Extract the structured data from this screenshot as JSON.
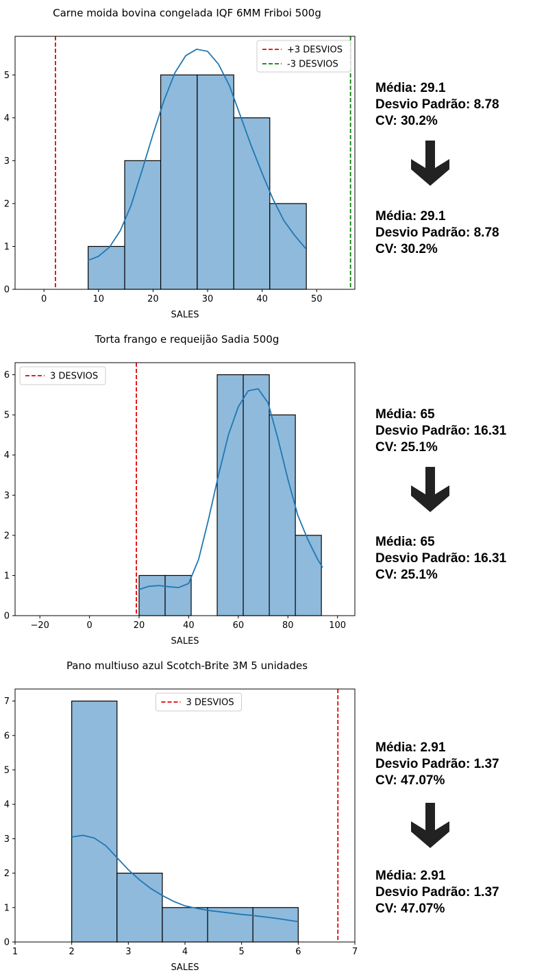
{
  "charts": [
    {
      "title": "Carne moida bovina congelada IQF 6MM Friboi 500g",
      "stats_before": {
        "media": "Média: 29.1",
        "desvio": "Desvio Padrão: 8.78",
        "cv": "CV: 30.2%"
      },
      "stats_after": {
        "media": "Média: 29.1",
        "desvio": "Desvio Padrão: 8.78",
        "cv": "CV: 30.2%"
      }
    },
    {
      "title": "Torta frango e requeijão Sadia 500g",
      "stats_before": {
        "media": "Média: 65",
        "desvio": "Desvio Padrão: 16.31",
        "cv": "CV: 25.1%"
      },
      "stats_after": {
        "media": "Média: 65",
        "desvio": "Desvio Padrão: 16.31",
        "cv": "CV: 25.1%"
      }
    },
    {
      "title": "Pano multiuso azul Scotch-Brite 3M 5 unidades",
      "stats_before": {
        "media": "Média: 2.91",
        "desvio": "Desvio Padrão: 1.37",
        "cv": "CV: 47.07%"
      },
      "stats_after": {
        "media": "Média: 2.91",
        "desvio": "Desvio Padrão: 1.37",
        "cv": "CV: 47.07%"
      }
    }
  ],
  "icons": {
    "down_arrow": "arrow-down-icon"
  },
  "colors": {
    "bar_fill": "#8fbadb",
    "kde_line": "#1f77b4",
    "red_line": "#e00000",
    "green_line": "#008000"
  },
  "chart_data": [
    {
      "type": "bar",
      "title": "Carne moida bovina congelada IQF 6MM Friboi 500g",
      "xlabel": "SALES",
      "ylabel": "",
      "xlim": [
        -5.3,
        57
      ],
      "ylim": [
        0,
        5.9
      ],
      "xticks": [
        0,
        10,
        20,
        30,
        40,
        50
      ],
      "yticks": [
        0,
        1,
        2,
        3,
        4,
        5
      ],
      "bins": [
        [
          8.1,
          14.8,
          1
        ],
        [
          14.8,
          21.4,
          3
        ],
        [
          21.4,
          28.1,
          5
        ],
        [
          28.1,
          34.8,
          5
        ],
        [
          34.8,
          41.4,
          4
        ],
        [
          41.4,
          48.1,
          2
        ]
      ],
      "kde": {
        "x": [
          8,
          10,
          12,
          14,
          16,
          18,
          20,
          22,
          24,
          26,
          28,
          30,
          32,
          34,
          36,
          38,
          40,
          42,
          44,
          46,
          48
        ],
        "y": [
          0.67,
          0.77,
          0.98,
          1.37,
          1.97,
          2.78,
          3.62,
          4.4,
          5.05,
          5.45,
          5.6,
          5.55,
          5.25,
          4.75,
          4.05,
          3.35,
          2.7,
          2.1,
          1.6,
          1.25,
          0.95
        ]
      },
      "vlines": [
        {
          "x": 2.1,
          "color": "red",
          "label": "+3 DESVIOS"
        },
        {
          "x": 56.2,
          "color": "green",
          "label": "-3 DESVIOS"
        }
      ],
      "legend": [
        "+3 DESVIOS",
        "-3 DESVIOS"
      ],
      "legend_position": "top-right"
    },
    {
      "type": "bar",
      "title": "Torta frango e requeijão Sadia 500g",
      "xlabel": "SALES",
      "ylabel": "",
      "xlim": [
        -30,
        107
      ],
      "ylim": [
        0,
        6.3
      ],
      "xticks": [
        -20,
        0,
        20,
        40,
        60,
        80,
        100
      ],
      "yticks": [
        0,
        1,
        2,
        3,
        4,
        5,
        6
      ],
      "bins": [
        [
          20,
          30.5,
          1
        ],
        [
          30.5,
          41,
          1
        ],
        [
          41,
          51.5,
          0
        ],
        [
          51.5,
          62,
          6
        ],
        [
          62,
          72.5,
          6
        ],
        [
          72.5,
          83,
          5
        ],
        [
          83,
          93.5,
          2
        ]
      ],
      "kde": {
        "x": [
          20,
          24,
          28,
          32,
          36,
          40,
          44,
          48,
          52,
          56,
          60,
          64,
          68,
          72,
          76,
          80,
          84,
          88,
          92,
          94
        ],
        "y": [
          0.65,
          0.73,
          0.75,
          0.72,
          0.7,
          0.8,
          1.4,
          2.4,
          3.5,
          4.5,
          5.2,
          5.6,
          5.65,
          5.3,
          4.4,
          3.4,
          2.5,
          1.9,
          1.4,
          1.2
        ]
      },
      "vlines": [
        {
          "x": 18.9,
          "color": "red",
          "label": "3 DESVIOS"
        }
      ],
      "legend": [
        "3 DESVIOS"
      ],
      "legend_position": "top-left"
    },
    {
      "type": "bar",
      "title": "Pano multiuso azul Scotch-Brite 3M 5 unidades",
      "xlabel": "SALES",
      "ylabel": "",
      "xlim": [
        1,
        7
      ],
      "ylim": [
        0,
        7.35
      ],
      "xticks": [
        1,
        2,
        3,
        4,
        5,
        6,
        7
      ],
      "yticks": [
        0,
        1,
        2,
        3,
        4,
        5,
        6,
        7
      ],
      "bins": [
        [
          2,
          2.8,
          7
        ],
        [
          2.8,
          3.6,
          2
        ],
        [
          3.6,
          4.4,
          1
        ],
        [
          4.4,
          5.2,
          1
        ],
        [
          5.2,
          6,
          1
        ]
      ],
      "kde": {
        "x": [
          2,
          2.2,
          2.4,
          2.6,
          2.8,
          3,
          3.2,
          3.4,
          3.6,
          3.8,
          4,
          4.2,
          4.4,
          4.6,
          4.8,
          5,
          5.2,
          5.4,
          5.6,
          5.8,
          6
        ],
        "y": [
          3.05,
          3.1,
          3.02,
          2.8,
          2.45,
          2.1,
          1.8,
          1.55,
          1.35,
          1.18,
          1.05,
          0.98,
          0.92,
          0.88,
          0.84,
          0.8,
          0.77,
          0.73,
          0.69,
          0.64,
          0.59
        ]
      },
      "vlines": [
        {
          "x": 6.7,
          "color": "red",
          "label": "3 DESVIOS"
        }
      ],
      "legend": [
        "3 DESVIOS"
      ],
      "legend_position": "top-center"
    }
  ]
}
